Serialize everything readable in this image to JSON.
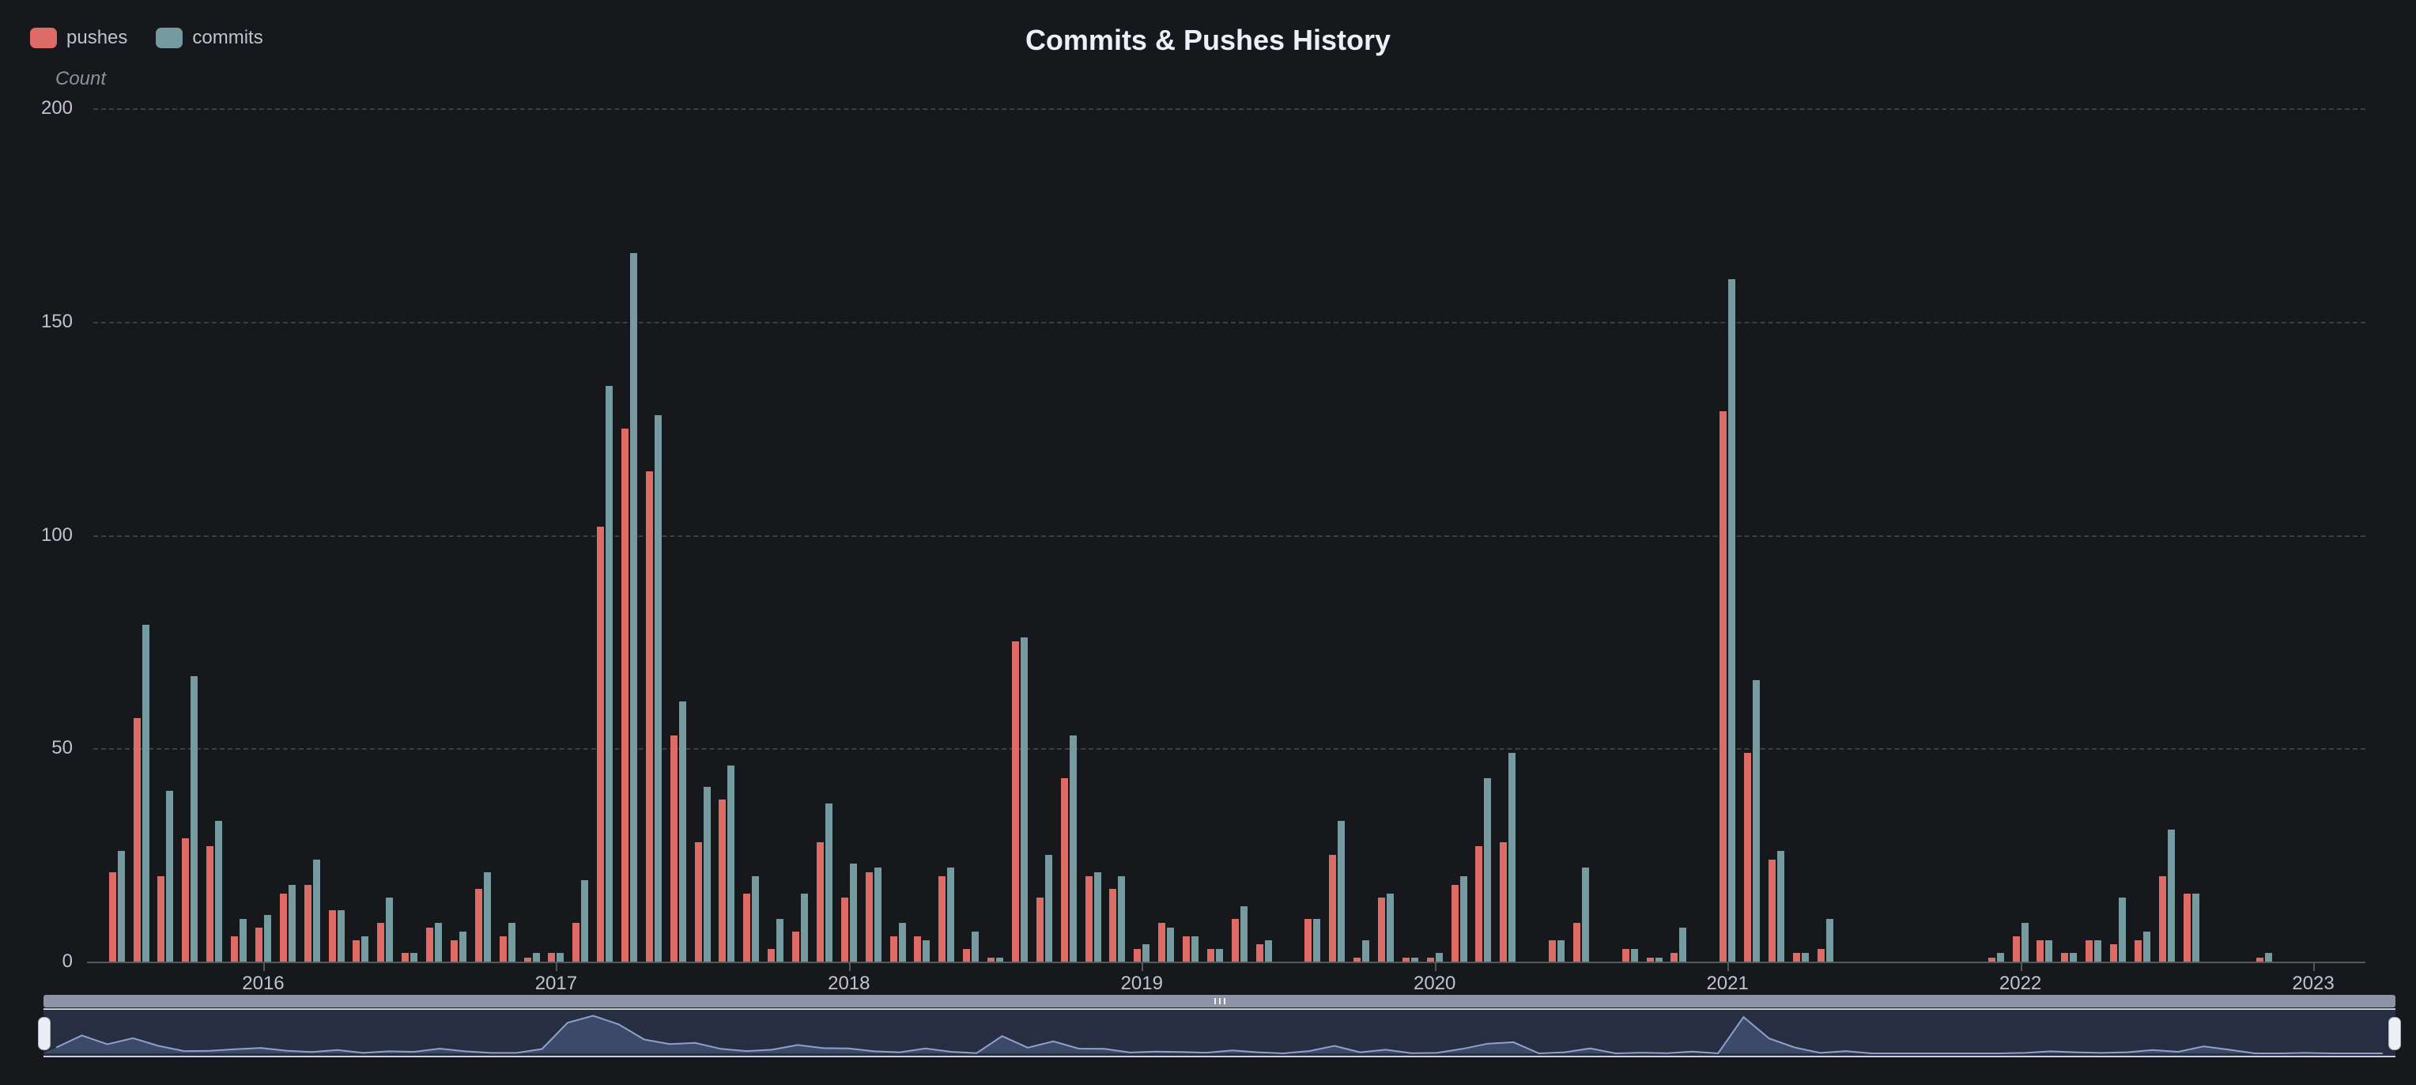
{
  "title": "Commits & Pushes History",
  "legend": {
    "items": [
      {
        "label": "pushes",
        "color": "#dd6b66"
      },
      {
        "label": "commits",
        "color": "#759aa0"
      }
    ]
  },
  "colors": {
    "background": "#17181b",
    "pushes": "#dd6b66",
    "commits": "#759aa0",
    "axis_text": "#c2c1ce",
    "gridline": "#3c3d45",
    "slider_bar": "#8b93a5",
    "slider_area_fill": "#3d4968",
    "slider_line": "#8fa0cc",
    "slider_handle": "#eceef3"
  },
  "chart_data": {
    "type": "bar",
    "title": "Commits & Pushes History",
    "xlabel": "",
    "ylabel": "Count",
    "ylim": [
      0,
      200
    ],
    "yticks": [
      0,
      50,
      100,
      150,
      200
    ],
    "grid": "horizontal-dashed",
    "legend_position": "top-left",
    "x_year_ticks": [
      "2016",
      "2017",
      "2018",
      "2019",
      "2020",
      "2021",
      "2022",
      "2023"
    ],
    "categories": [
      "2015-07",
      "2015-08",
      "2015-09",
      "2015-10",
      "2015-11",
      "2015-12",
      "2016-01",
      "2016-02",
      "2016-03",
      "2016-04",
      "2016-05",
      "2016-06",
      "2016-07",
      "2016-08",
      "2016-09",
      "2016-10",
      "2016-11",
      "2016-12",
      "2017-01",
      "2017-02",
      "2017-03",
      "2017-04",
      "2017-05",
      "2017-06",
      "2017-07",
      "2017-08",
      "2017-09",
      "2017-10",
      "2017-11",
      "2017-12",
      "2018-01",
      "2018-02",
      "2018-03",
      "2018-04",
      "2018-05",
      "2018-06",
      "2018-07",
      "2018-08",
      "2018-09",
      "2018-10",
      "2018-11",
      "2018-12",
      "2019-01",
      "2019-02",
      "2019-03",
      "2019-04",
      "2019-05",
      "2019-06",
      "2019-07",
      "2019-08",
      "2019-09",
      "2019-10",
      "2019-11",
      "2019-12",
      "2020-01",
      "2020-02",
      "2020-03",
      "2020-04",
      "2020-05",
      "2020-06",
      "2020-07",
      "2020-08",
      "2020-09",
      "2020-10",
      "2020-11",
      "2020-12",
      "2021-01",
      "2021-02",
      "2021-03",
      "2021-04",
      "2021-05",
      "2021-06",
      "2021-07",
      "2021-08",
      "2021-09",
      "2021-10",
      "2021-11",
      "2021-12",
      "2022-01",
      "2022-02",
      "2022-03",
      "2022-04",
      "2022-05",
      "2022-06",
      "2022-07",
      "2022-08",
      "2022-09",
      "2022-10",
      "2022-11",
      "2022-12",
      "2023-01",
      "2023-02"
    ],
    "series": [
      {
        "name": "pushes",
        "color": "#dd6b66",
        "values": [
          21,
          57,
          20,
          29,
          27,
          6,
          8,
          16,
          18,
          12,
          5,
          9,
          2,
          8,
          5,
          17,
          6,
          1,
          2,
          9,
          102,
          125,
          115,
          53,
          28,
          38,
          16,
          3,
          7,
          28,
          15,
          21,
          6,
          6,
          20,
          3,
          1,
          75,
          15,
          43,
          20,
          17,
          3,
          9,
          6,
          3,
          10,
          4,
          0,
          10,
          25,
          1,
          15,
          1,
          1,
          18,
          27,
          28,
          0,
          5,
          9,
          0,
          3,
          1,
          2,
          0,
          129,
          49,
          24,
          2,
          3,
          0,
          0,
          0,
          0,
          0,
          0,
          1,
          6,
          5,
          2,
          5,
          4,
          5,
          20,
          16,
          0,
          0,
          1,
          0,
          0,
          0
        ]
      },
      {
        "name": "commits",
        "color": "#759aa0",
        "values": [
          26,
          79,
          40,
          67,
          33,
          10,
          11,
          18,
          24,
          12,
          6,
          15,
          2,
          9,
          7,
          21,
          9,
          2,
          2,
          19,
          135,
          166,
          128,
          61,
          41,
          46,
          20,
          10,
          16,
          37,
          23,
          22,
          9,
          5,
          22,
          7,
          1,
          76,
          25,
          53,
          21,
          20,
          4,
          8,
          6,
          3,
          13,
          5,
          0,
          10,
          33,
          5,
          16,
          1,
          2,
          20,
          43,
          49,
          0,
          5,
          22,
          0,
          3,
          1,
          8,
          0,
          160,
          66,
          26,
          2,
          10,
          0,
          0,
          0,
          0,
          0,
          0,
          2,
          9,
          5,
          2,
          5,
          15,
          7,
          31,
          16,
          0,
          0,
          2,
          0,
          0,
          0
        ]
      }
    ]
  },
  "slider": {
    "grip_bars": 3
  }
}
